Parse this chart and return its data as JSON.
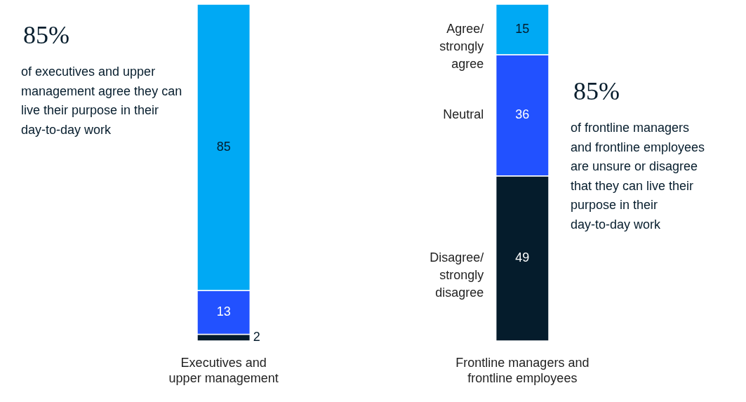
{
  "chart_data": {
    "type": "bar",
    "stacked": true,
    "data_labels": true,
    "categories": [
      "Executives and upper management",
      "Frontline managers and frontline employees"
    ],
    "series": [
      {
        "name": "Disagree/ strongly disagree",
        "color": "#051c2c",
        "values": [
          2,
          49
        ]
      },
      {
        "name": "Neutral",
        "color": "#2251ff",
        "values": [
          13,
          36
        ]
      },
      {
        "name": "Agree/ strongly agree",
        "color": "#00a9f4",
        "values": [
          85,
          15
        ]
      }
    ],
    "annotations": [
      "85%",
      "of executives and upper management agree they can live their purpose in their day-to-day work",
      "85%",
      "of frontline managers and frontline employees are unsure or disagree that they can live their purpose in their day-to-day work"
    ]
  }
}
